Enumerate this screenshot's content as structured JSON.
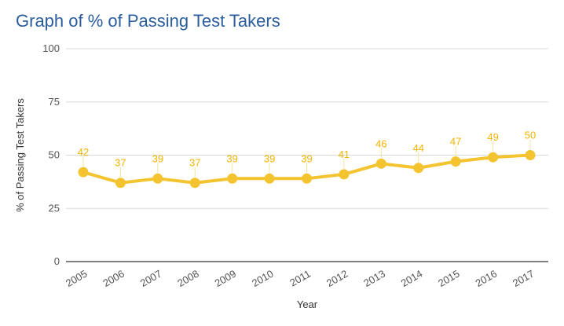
{
  "chart_data": {
    "type": "line",
    "title": "Graph of % of Passing Test Takers",
    "xlabel": "Year",
    "ylabel": "% of Passing Test Takers",
    "categories": [
      "2005",
      "2006",
      "2007",
      "2008",
      "2009",
      "2010",
      "2011",
      "2012",
      "2013",
      "2014",
      "2015",
      "2016",
      "2017"
    ],
    "series": [
      {
        "values": [
          42,
          37,
          39,
          37,
          39,
          39,
          39,
          41,
          46,
          44,
          47,
          49,
          50
        ],
        "labels": [
          "42",
          "37",
          "39",
          "37",
          "39",
          "39",
          "39",
          "41",
          "46",
          "44",
          "47",
          "49",
          "50"
        ]
      }
    ],
    "ylim": [
      0,
      100
    ],
    "yticks": [
      "0",
      "25",
      "50",
      "75",
      "100"
    ],
    "grid": true,
    "legend": "none",
    "colors": {
      "series": "#f4c430",
      "label": "#f0b400",
      "grid": "#d9d9d9",
      "axis": "#333333",
      "title": "#2a5d9c"
    }
  }
}
